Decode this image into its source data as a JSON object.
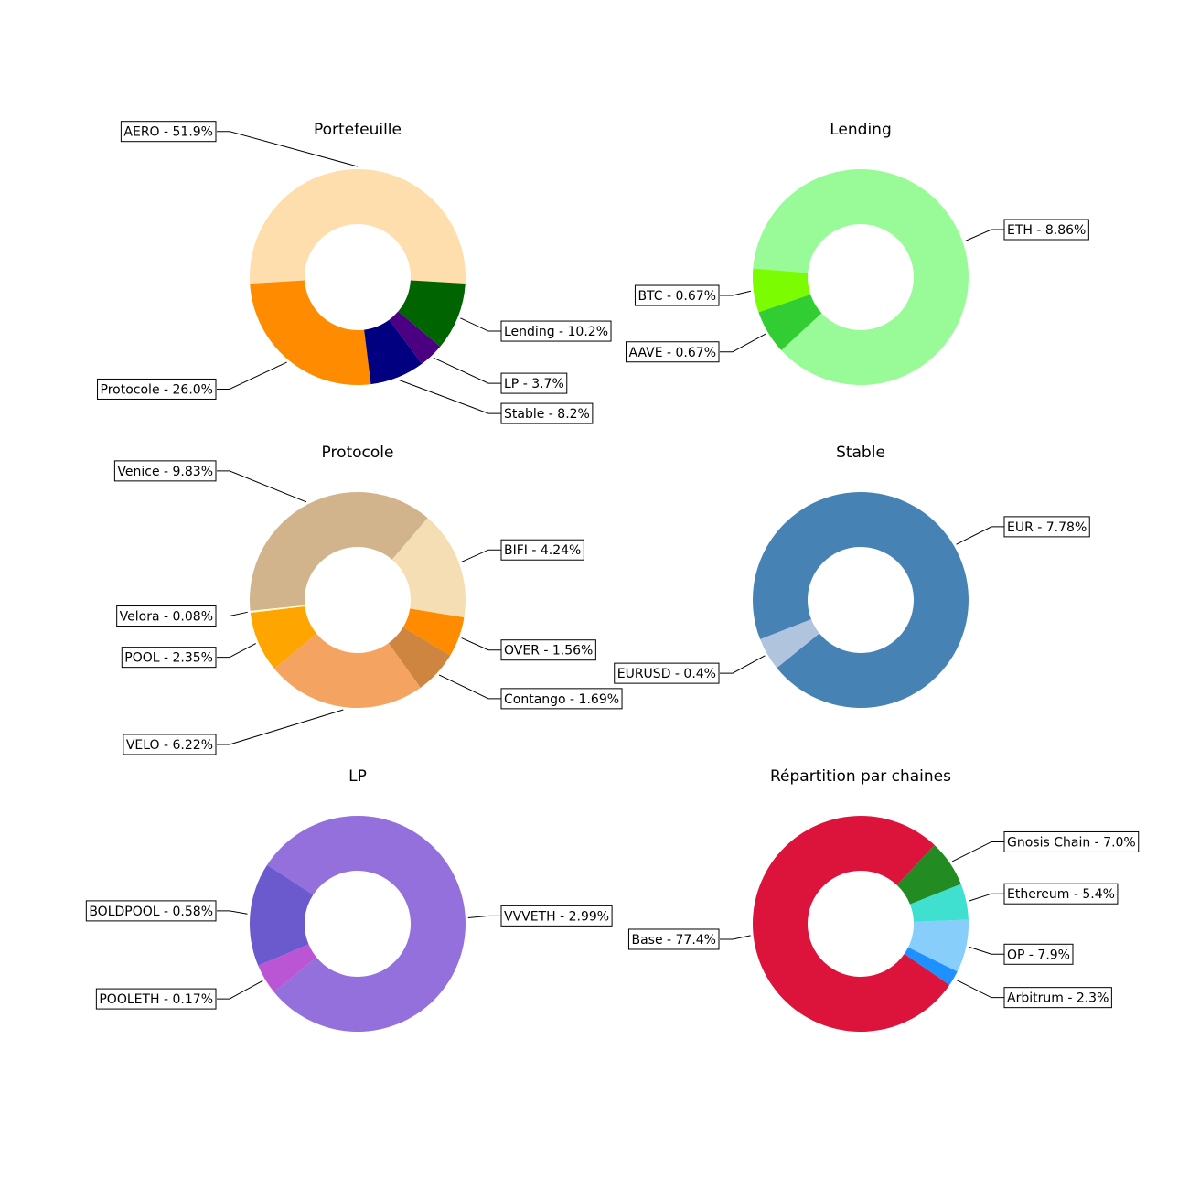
{
  "chart_data": [
    {
      "type": "donut",
      "title": "Portefeuille",
      "start_angle": -3.4,
      "categories": [
        "AERO - 51.9%",
        "Protocole - 26.0%",
        "Stable - 8.2%",
        "LP - 3.7%",
        "Lending - 10.2%"
      ],
      "values": [
        51.9,
        26.0,
        8.2,
        3.7,
        10.2
      ],
      "colors": [
        "#ffdead",
        "#ff8c00",
        "#000080",
        "#4b0082",
        "#006400"
      ]
    },
    {
      "type": "donut",
      "title": "Lending",
      "start_angle": -137.3,
      "categories": [
        "ETH - 8.86%",
        "BTC - 0.67%",
        "AAVE - 0.67%"
      ],
      "values": [
        8.86,
        0.67,
        0.67
      ],
      "colors": [
        "#98fb98",
        "#7cfc00",
        "#32cd32"
      ]
    },
    {
      "type": "donut",
      "title": "Protocole",
      "start_angle": 49.5,
      "categories": [
        "Venice - 9.83%",
        "Velora - 0.08%",
        "POOL - 2.35%",
        "VELO - 6.22%",
        "Contango - 1.69%",
        "OVER - 1.56%",
        "BIFI - 4.24%"
      ],
      "values": [
        9.83,
        0.08,
        2.35,
        6.22,
        1.69,
        1.56,
        4.24
      ],
      "colors": [
        "#d2b48c",
        "#fffacd",
        "#ffa500",
        "#f4a460",
        "#cd853f",
        "#ff8c00",
        "#f5deb3"
      ]
    },
    {
      "type": "donut",
      "title": "Stable",
      "start_angle": 219,
      "categories": [
        "EUR - 7.78%",
        "EURUSD - 0.4%"
      ],
      "values": [
        7.78,
        0.4
      ],
      "colors": [
        "#4682b4",
        "#b0c4de"
      ]
    },
    {
      "type": "donut",
      "title": "LP",
      "start_angle": 219.2,
      "categories": [
        "VVVETH - 2.99%",
        "BOLDPOOL - 0.58%",
        "POOLETH - 0.17%"
      ],
      "values": [
        2.99,
        0.58,
        0.17
      ],
      "colors": [
        "#9370db",
        "#6a5acd",
        "#ba55d3"
      ]
    },
    {
      "type": "donut",
      "title": "Répartition par chaines",
      "start_angle": 46.8,
      "categories": [
        "Base - 77.4%",
        "Arbitrum - 2.3%",
        "OP - 7.9%",
        "Ethereum - 5.4%",
        "Gnosis Chain - 7.0%"
      ],
      "values": [
        77.4,
        2.3,
        7.9,
        5.4,
        7.0
      ],
      "colors": [
        "#dc143c",
        "#1e90ff",
        "#87cefa",
        "#40e0d0",
        "#228b22"
      ]
    }
  ]
}
